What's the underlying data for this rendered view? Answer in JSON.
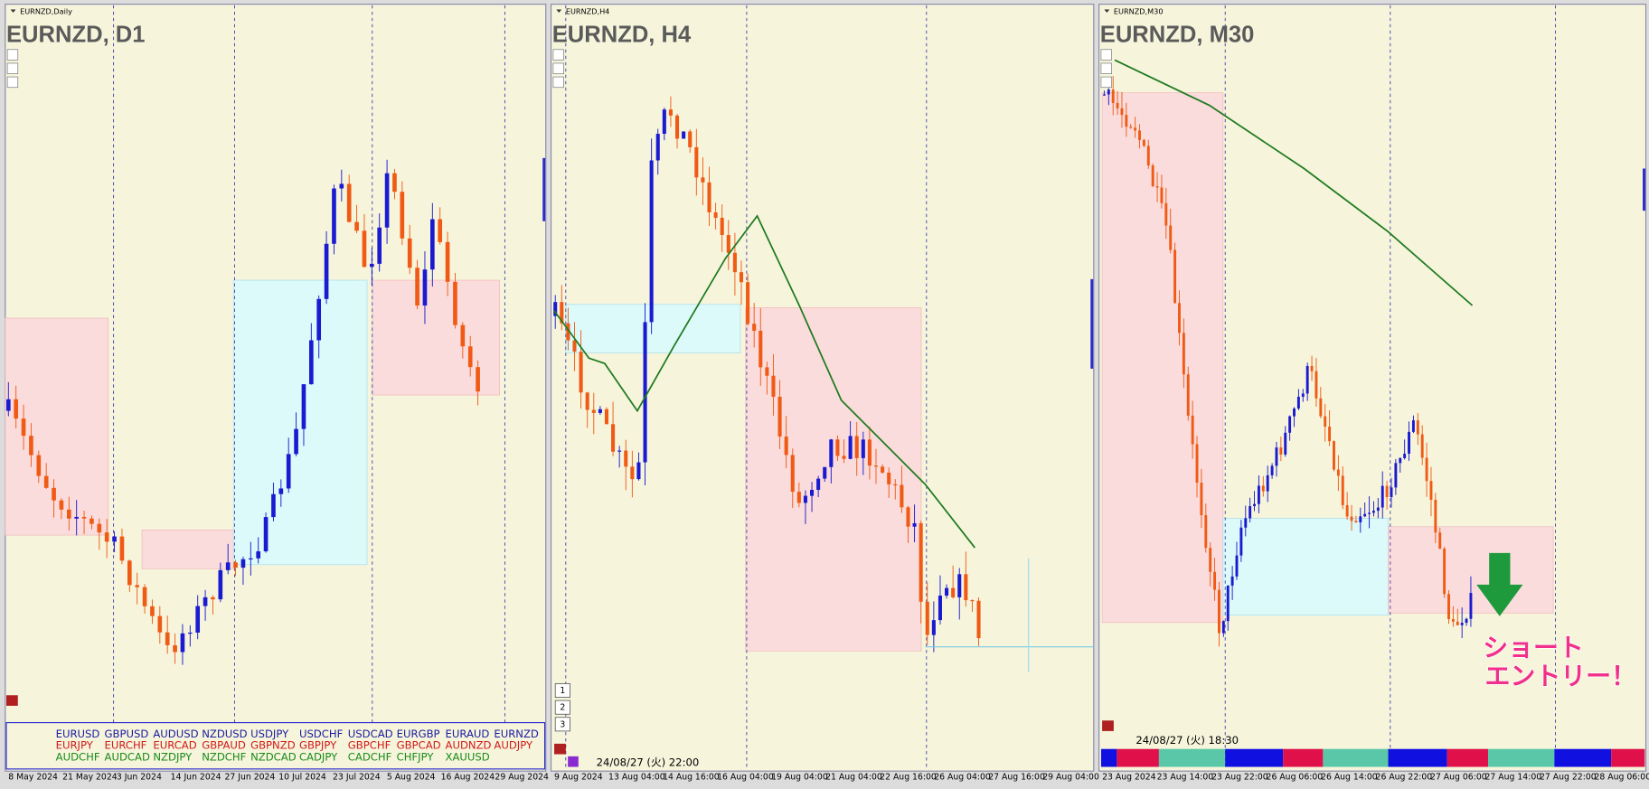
{
  "panels": [
    {
      "header": "EURNZD,Daily",
      "title": "EURNZD, D1",
      "x_labels": [
        "8 May 2024",
        "21 May 2024",
        "3 Jun 2024",
        "14 Jun 2024",
        "27 Jun 2024",
        "10 Jul 2024",
        "23 Jul 2024",
        "5 Aug 2024",
        "16 Aug 2024",
        "29 Aug 2024"
      ]
    },
    {
      "header": "EURNZD,H4",
      "title": "EURNZD, H4",
      "x_labels": [
        "9 Aug 2024",
        "13 Aug 04:00",
        "14 Aug 16:00",
        "16 Aug 04:00",
        "19 Aug 04:00",
        "21 Aug 04:00",
        "22 Aug 16:00",
        "26 Aug 04:00",
        "27 Aug 16:00",
        "29 Aug 04:00"
      ],
      "buttons": [
        "1",
        "2",
        "3"
      ],
      "timestamp": "24/08/27 (火) 22:00"
    },
    {
      "header": "EURNZD,M30",
      "title": "EURNZD, M30",
      "x_labels": [
        "23 Aug 2024",
        "23 Aug 14:00",
        "23 Aug 22:00",
        "26 Aug 06:00",
        "26 Aug 14:00",
        "26 Aug 22:00",
        "27 Aug 06:00",
        "27 Aug 14:00",
        "27 Aug 22:00",
        "28 Aug 06:00"
      ],
      "timestamp": "24/08/27 (火) 18:30",
      "annotation": [
        "ショート",
        "エントリー！"
      ]
    }
  ],
  "symbols": [
    [
      "EURUSD",
      "GBPUSD",
      "AUDUSD",
      "NZDUSD",
      "USDJPY",
      "USDCHF",
      "USDCAD",
      "EURGBP",
      "EURAUD",
      "EURNZD"
    ],
    [
      "EURJPY",
      "EURCHF",
      "EURCAD",
      "GBPAUD",
      "GBPNZD",
      "GBPJPY",
      "GBPCHF",
      "GBPCAD",
      "AUDNZD",
      "AUDJPY"
    ],
    [
      "AUDCHF",
      "AUDCAD",
      "NZDJPY",
      "NZDCHF",
      "NZDCAD",
      "CADJPY",
      "CADCHF",
      "CHFJPY",
      "XAUUSD"
    ]
  ]
}
